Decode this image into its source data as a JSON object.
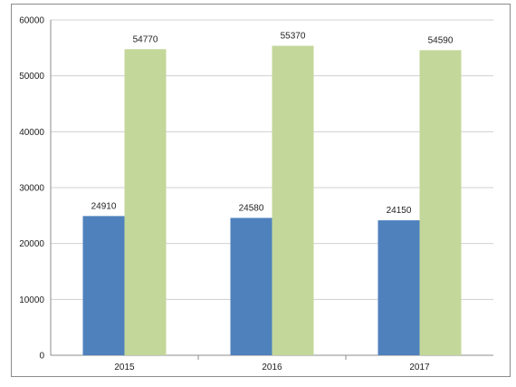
{
  "chart_data": {
    "type": "bar",
    "categories": [
      "2015",
      "2016",
      "2017"
    ],
    "series": [
      {
        "values": [
          24910,
          24580,
          24150
        ],
        "color": "#4f81bd",
        "labels": [
          "24910",
          "24580",
          "24150"
        ]
      },
      {
        "values": [
          54770,
          55370,
          54590
        ],
        "color": "#c4d79b",
        "labels": [
          "54770",
          "55370",
          "54590"
        ]
      }
    ],
    "ylim": [
      0,
      60000
    ],
    "yticks": [
      "0",
      "10000",
      "20000",
      "30000",
      "40000",
      "50000",
      "60000"
    ],
    "grid": true,
    "legend": "none",
    "title": "",
    "xlabel": "",
    "ylabel": ""
  }
}
